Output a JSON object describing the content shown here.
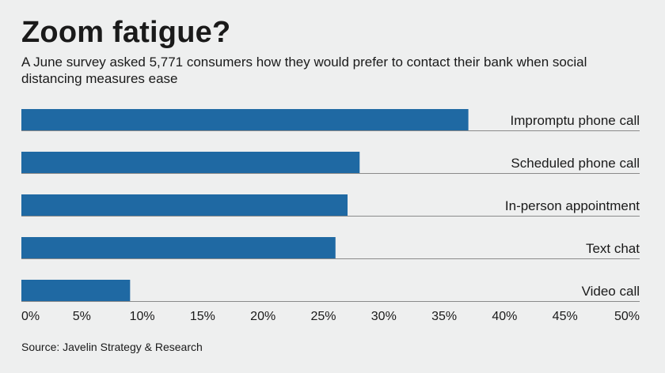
{
  "chart_data": {
    "type": "bar",
    "orientation": "horizontal",
    "title": "Zoom fatigue?",
    "subtitle": "A June survey asked 5,771 consumers how they would prefer to contact their bank when social distancing measures ease",
    "categories": [
      "Impromptu phone call",
      "Scheduled phone call",
      "In-person appointment",
      "Text chat",
      "Video call"
    ],
    "values": [
      37,
      28,
      27,
      26,
      9
    ],
    "unit": "%",
    "xlim": [
      0,
      50
    ],
    "xticks": [
      "0%",
      "5%",
      "10%",
      "15%",
      "20%",
      "25%",
      "30%",
      "35%",
      "40%",
      "45%",
      "50%"
    ],
    "source": "Source: Javelin Strategy & Research",
    "bar_color": "#1f69a3",
    "line_color": "#8a8a8a",
    "grid": false
  }
}
